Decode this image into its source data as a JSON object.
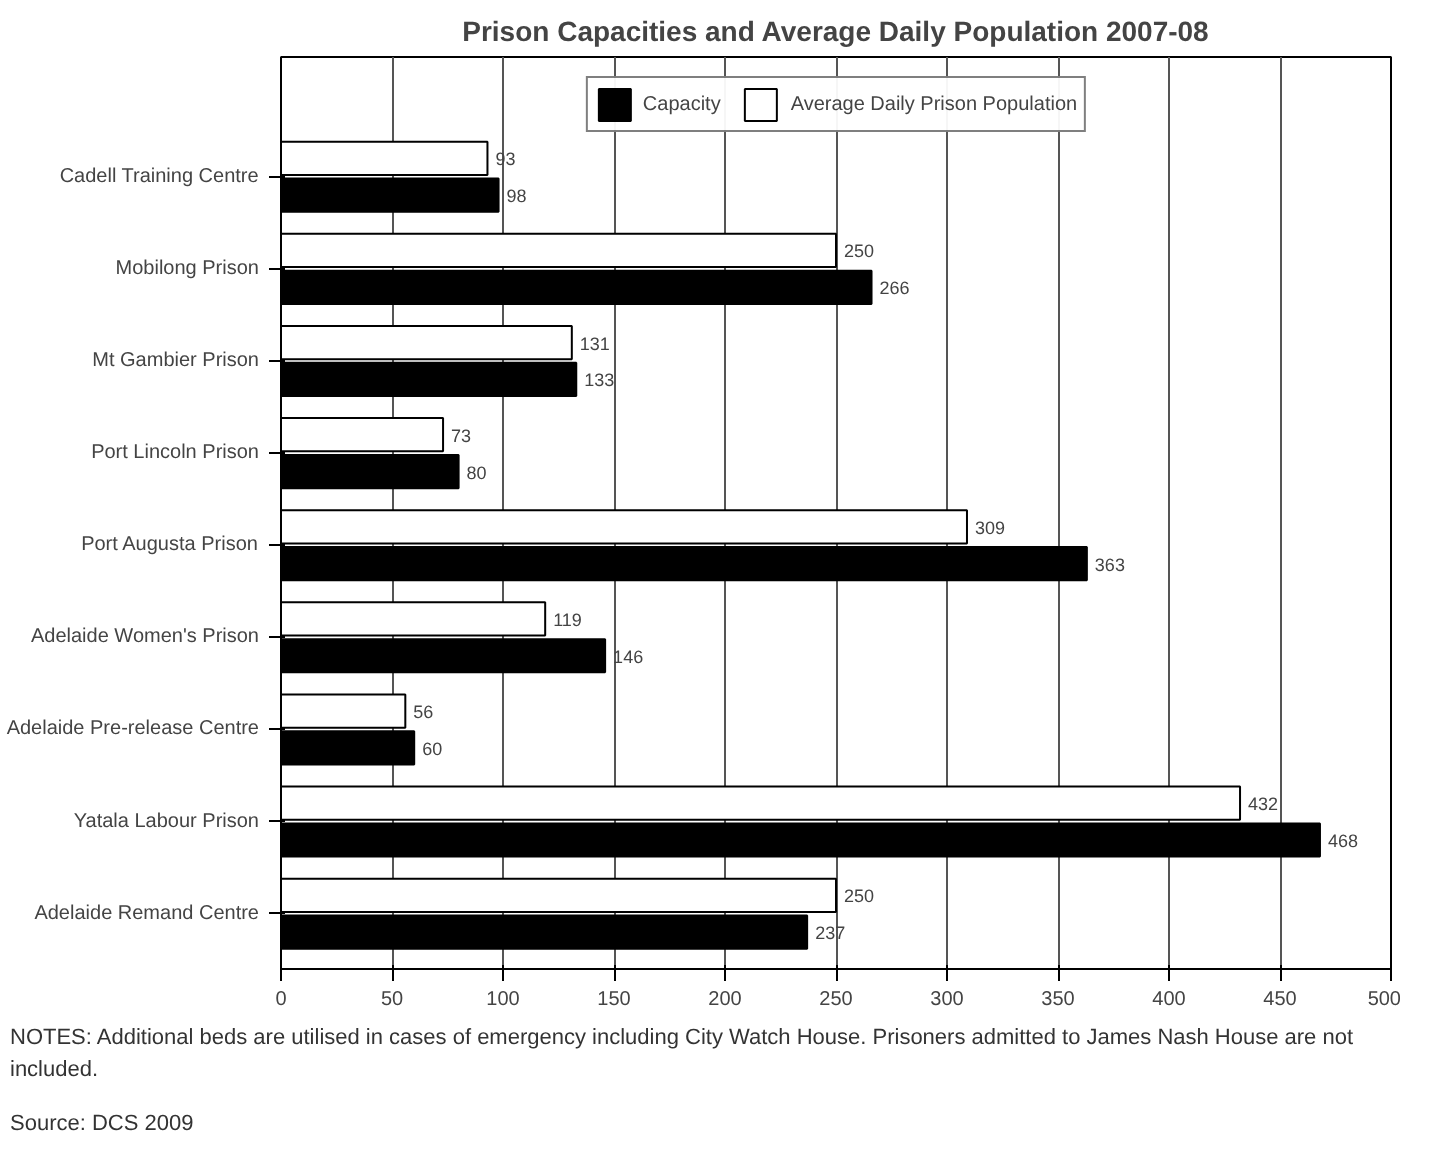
{
  "chart_data": {
    "type": "bar",
    "orientation": "horizontal",
    "title": "Prison Capacities and Average Daily Population 2007-08",
    "categories": [
      "Cadell Training Centre",
      "Mobilong Prison",
      "Mt Gambier Prison",
      "Port Lincoln Prison",
      "Port Augusta Prison",
      "Adelaide Women's Prison",
      "Adelaide Pre-release Centre",
      "Yatala Labour Prison",
      "Adelaide Remand Centre"
    ],
    "series": [
      {
        "name": "Capacity",
        "color": "#000000",
        "values": [
          98,
          266,
          133,
          80,
          363,
          146,
          60,
          468,
          237
        ]
      },
      {
        "name": "Average Daily Prison Population",
        "color": "#ffffff",
        "values": [
          93,
          250,
          131,
          73,
          309,
          119,
          56,
          432,
          250
        ]
      }
    ],
    "xlim": [
      0,
      500
    ],
    "xticks": [
      0,
      50,
      100,
      150,
      200,
      250,
      300,
      350,
      400,
      450,
      500
    ],
    "grid": "x",
    "legend": "top",
    "data_labels": true,
    "annotations": [
      "NOTES: Additional beds are utilised in cases of emergency including City Watch House. Prisoners admitted to James Nash House are not included.",
      "Source: DCS 2009"
    ]
  }
}
